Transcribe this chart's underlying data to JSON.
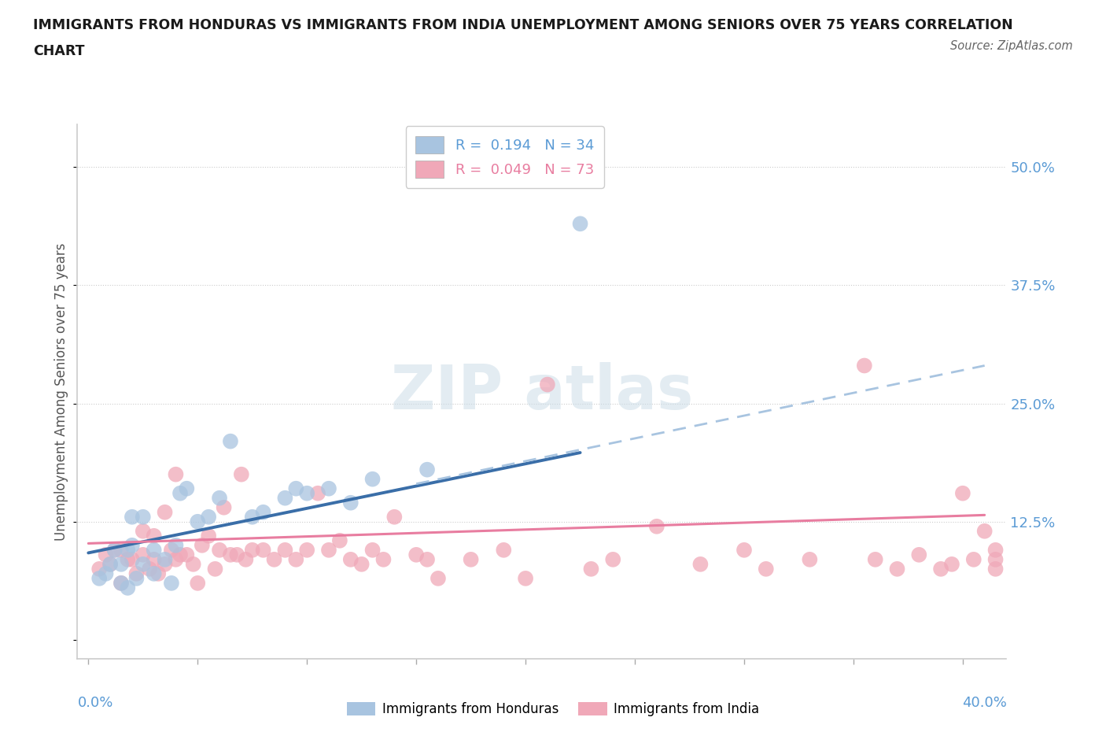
{
  "title_line1": "IMMIGRANTS FROM HONDURAS VS IMMIGRANTS FROM INDIA UNEMPLOYMENT AMONG SENIORS OVER 75 YEARS CORRELATION",
  "title_line2": "CHART",
  "source": "Source: ZipAtlas.com",
  "ylabel": "Unemployment Among Seniors over 75 years",
  "xlim": [
    -0.005,
    0.42
  ],
  "ylim": [
    -0.02,
    0.545
  ],
  "ytick_vals": [
    0.0,
    0.125,
    0.25,
    0.375,
    0.5
  ],
  "ytick_labels": [
    "",
    "12.5%",
    "25.0%",
    "37.5%",
    "50.0%"
  ],
  "xtick_vals": [
    0.0,
    0.05,
    0.1,
    0.15,
    0.2,
    0.25,
    0.3,
    0.35,
    0.4
  ],
  "color_honduras": "#a8c4e0",
  "color_india": "#f0a8b8",
  "trendline_h_x0": 0.0,
  "trendline_h_y0": 0.092,
  "trendline_h_x1": 0.225,
  "trendline_h_y1": 0.198,
  "trendline_i_x0": 0.0,
  "trendline_i_y0": 0.102,
  "trendline_i_x1": 0.41,
  "trendline_i_y1": 0.132,
  "trendline_dashed_x0": 0.15,
  "trendline_dashed_y0": 0.165,
  "trendline_dashed_x1": 0.41,
  "trendline_dashed_y1": 0.29,
  "trendline_h_color": "#3a6ea8",
  "trendline_i_color": "#e87da0",
  "trendline_dashed_color": "#a8c4e0",
  "R_honduras": "0.194",
  "N_honduras": "34",
  "R_india": "0.049",
  "N_india": "73",
  "legend_blue": "#5b9bd5",
  "legend_pink": "#e87da0",
  "watermark_color": "#ccdde8",
  "honduras_x": [
    0.005,
    0.008,
    0.01,
    0.012,
    0.015,
    0.015,
    0.018,
    0.018,
    0.02,
    0.02,
    0.022,
    0.025,
    0.025,
    0.03,
    0.03,
    0.035,
    0.038,
    0.04,
    0.042,
    0.045,
    0.05,
    0.055,
    0.06,
    0.065,
    0.075,
    0.08,
    0.09,
    0.095,
    0.1,
    0.11,
    0.12,
    0.13,
    0.155,
    0.225
  ],
  "honduras_y": [
    0.065,
    0.07,
    0.08,
    0.095,
    0.06,
    0.08,
    0.055,
    0.095,
    0.1,
    0.13,
    0.065,
    0.08,
    0.13,
    0.07,
    0.095,
    0.085,
    0.06,
    0.1,
    0.155,
    0.16,
    0.125,
    0.13,
    0.15,
    0.21,
    0.13,
    0.135,
    0.15,
    0.16,
    0.155,
    0.16,
    0.145,
    0.17,
    0.18,
    0.44
  ],
  "india_x": [
    0.005,
    0.008,
    0.01,
    0.012,
    0.015,
    0.015,
    0.018,
    0.02,
    0.022,
    0.025,
    0.025,
    0.028,
    0.03,
    0.03,
    0.032,
    0.035,
    0.035,
    0.038,
    0.04,
    0.04,
    0.042,
    0.045,
    0.048,
    0.05,
    0.052,
    0.055,
    0.058,
    0.06,
    0.062,
    0.065,
    0.068,
    0.07,
    0.072,
    0.075,
    0.08,
    0.085,
    0.09,
    0.095,
    0.1,
    0.105,
    0.11,
    0.115,
    0.12,
    0.125,
    0.13,
    0.135,
    0.14,
    0.15,
    0.155,
    0.16,
    0.175,
    0.19,
    0.2,
    0.21,
    0.23,
    0.24,
    0.26,
    0.28,
    0.3,
    0.31,
    0.33,
    0.355,
    0.36,
    0.37,
    0.38,
    0.39,
    0.395,
    0.4,
    0.405,
    0.41,
    0.415,
    0.415,
    0.415
  ],
  "india_y": [
    0.075,
    0.09,
    0.08,
    0.095,
    0.06,
    0.095,
    0.085,
    0.085,
    0.07,
    0.09,
    0.115,
    0.075,
    0.085,
    0.11,
    0.07,
    0.08,
    0.135,
    0.095,
    0.085,
    0.175,
    0.09,
    0.09,
    0.08,
    0.06,
    0.1,
    0.11,
    0.075,
    0.095,
    0.14,
    0.09,
    0.09,
    0.175,
    0.085,
    0.095,
    0.095,
    0.085,
    0.095,
    0.085,
    0.095,
    0.155,
    0.095,
    0.105,
    0.085,
    0.08,
    0.095,
    0.085,
    0.13,
    0.09,
    0.085,
    0.065,
    0.085,
    0.095,
    0.065,
    0.27,
    0.075,
    0.085,
    0.12,
    0.08,
    0.095,
    0.075,
    0.085,
    0.29,
    0.085,
    0.075,
    0.09,
    0.075,
    0.08,
    0.155,
    0.085,
    0.115,
    0.075,
    0.085,
    0.095
  ]
}
